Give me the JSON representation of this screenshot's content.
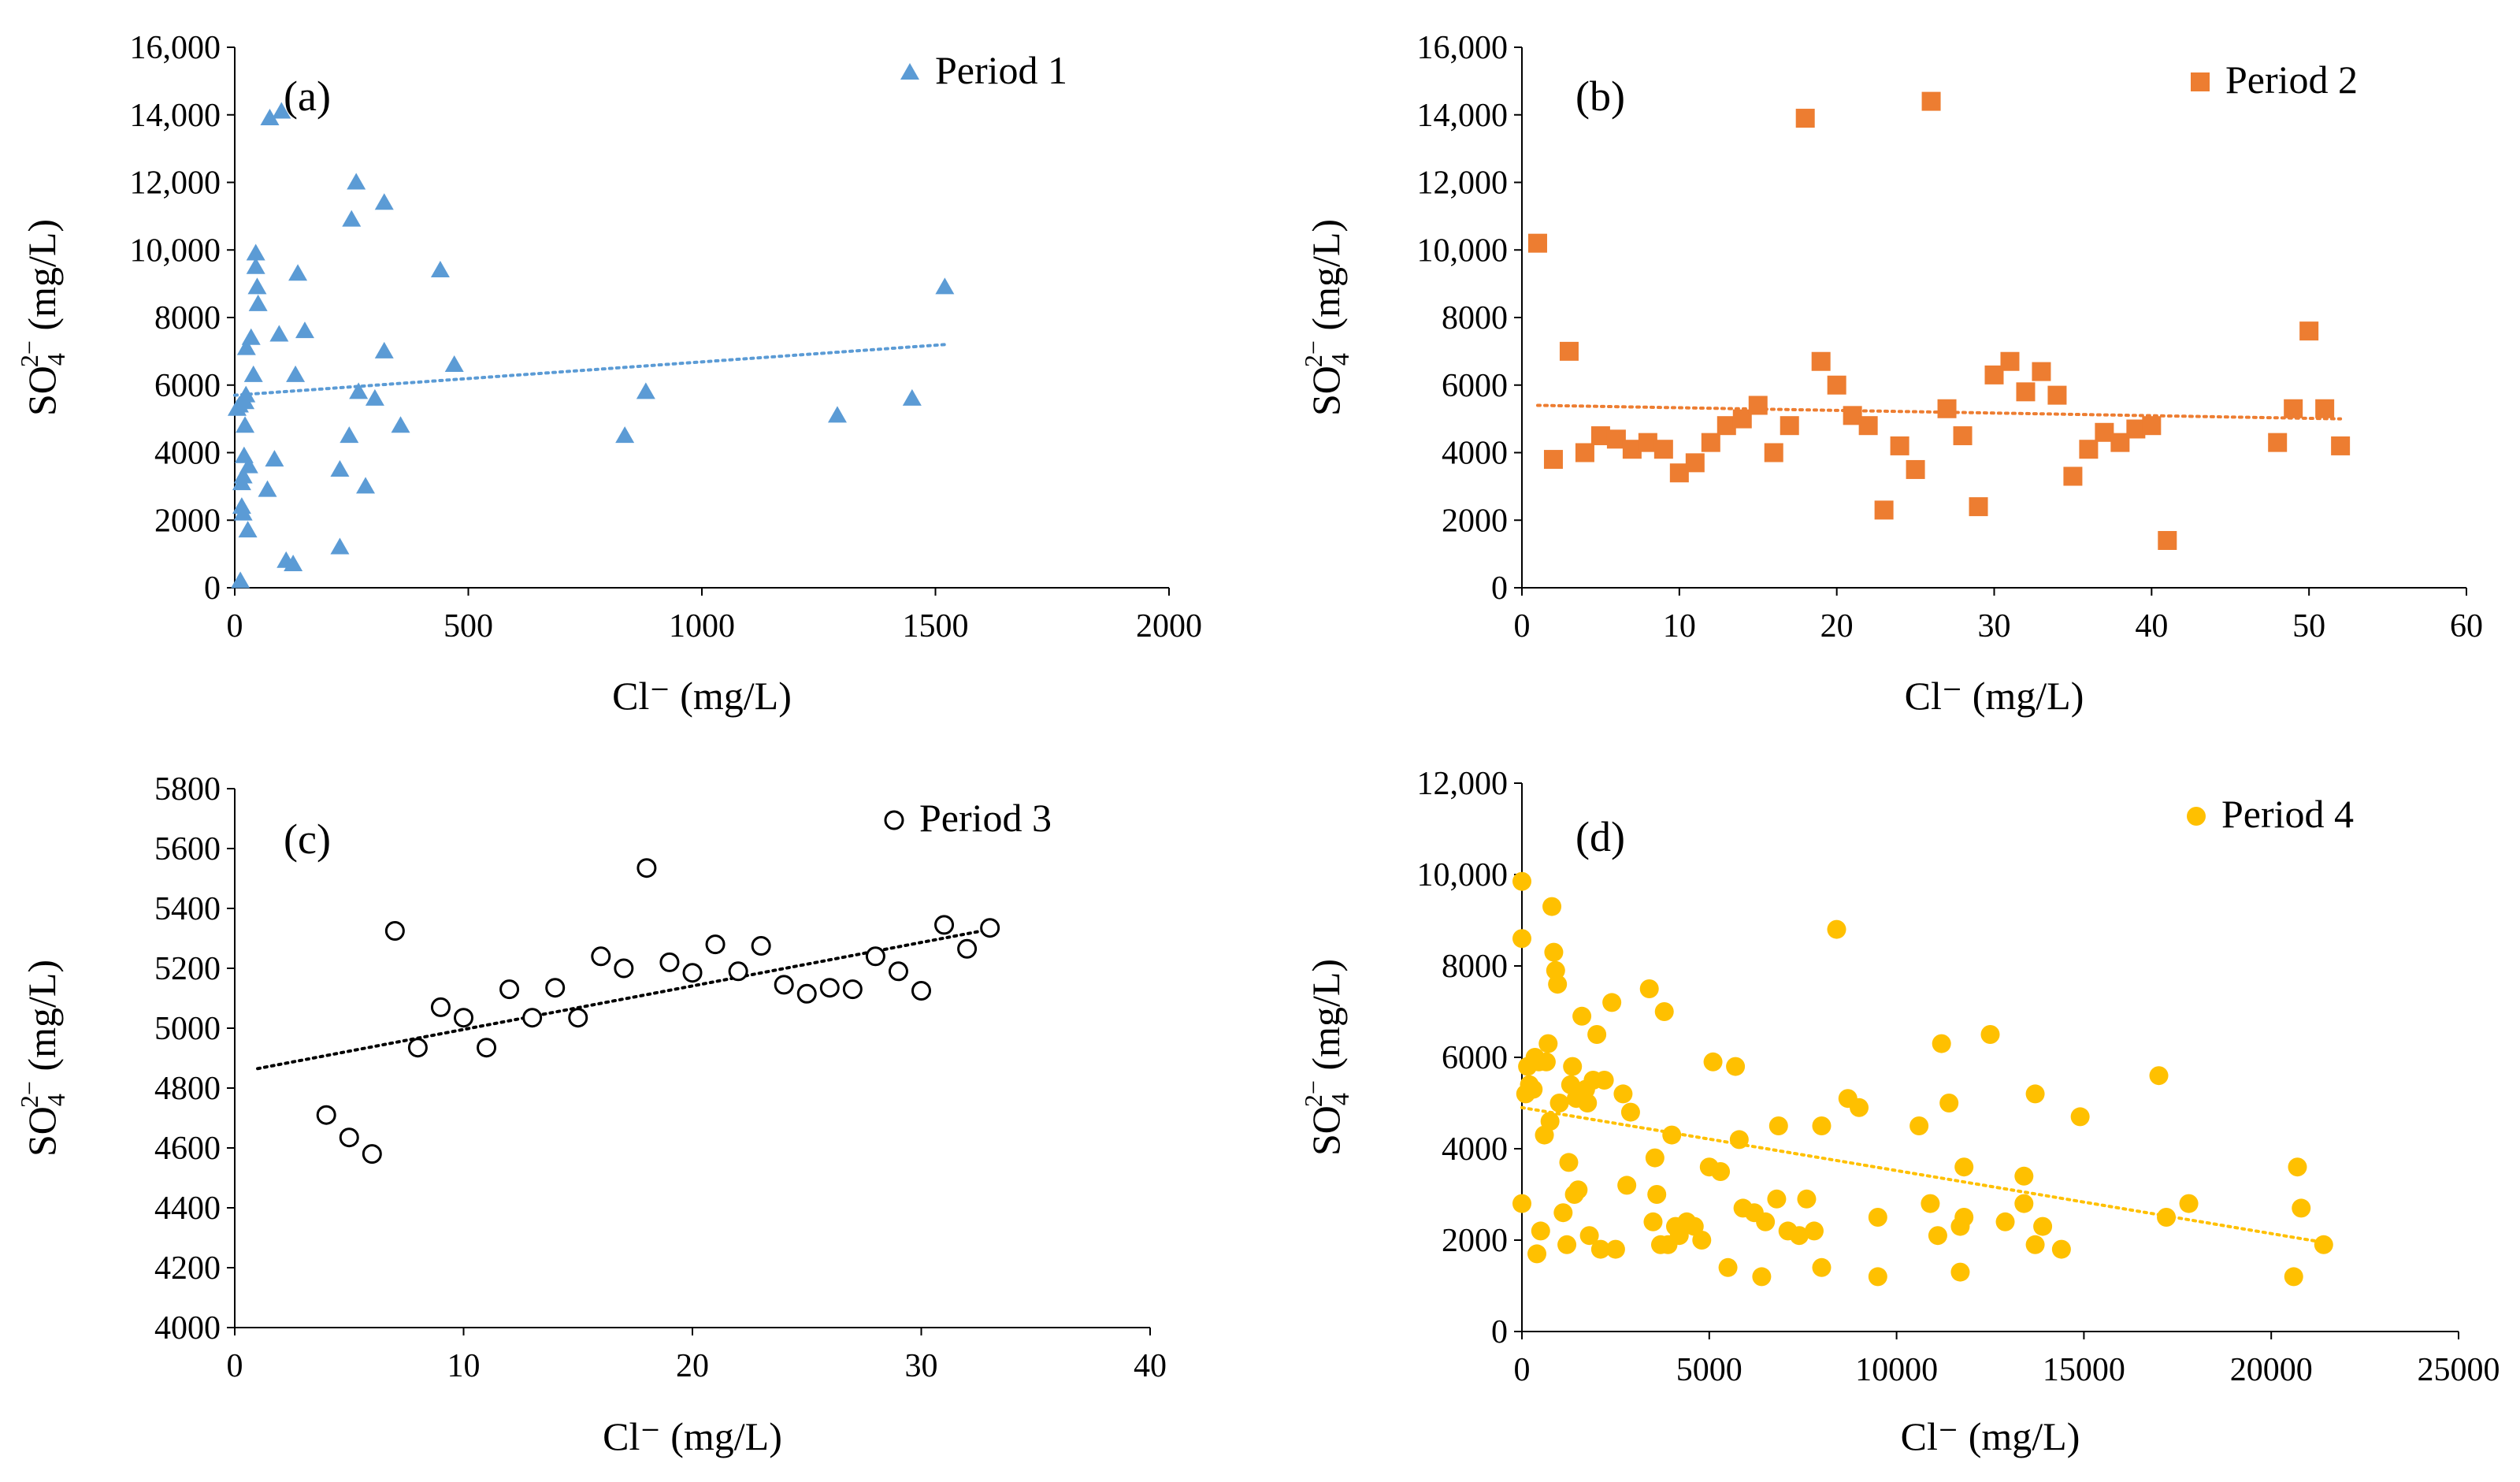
{
  "chart_data": [
    {
      "type": "scatter",
      "panel": "(a)",
      "series": [
        {
          "name": "Period 1",
          "marker": "triangle",
          "color": "#5B9BD5",
          "points": [
            [
              5,
              5300
            ],
            [
              10,
              5400
            ],
            [
              12,
              200
            ],
            [
              15,
              2400
            ],
            [
              15,
              3100
            ],
            [
              18,
              2200
            ],
            [
              18,
              3300
            ],
            [
              20,
              3900
            ],
            [
              22,
              4800
            ],
            [
              22,
              5500
            ],
            [
              24,
              5700
            ],
            [
              25,
              7100
            ],
            [
              28,
              1700
            ],
            [
              30,
              3600
            ],
            [
              35,
              7400
            ],
            [
              40,
              6300
            ],
            [
              45,
              9900
            ],
            [
              45,
              9500
            ],
            [
              48,
              8900
            ],
            [
              50,
              8400
            ],
            [
              70,
              2900
            ],
            [
              75,
              13900
            ],
            [
              85,
              3800
            ],
            [
              95,
              7500
            ],
            [
              100,
              14100
            ],
            [
              110,
              800
            ],
            [
              125,
              700
            ],
            [
              130,
              6300
            ],
            [
              135,
              9300
            ],
            [
              150,
              7600
            ],
            [
              225,
              1200
            ],
            [
              225,
              3500
            ],
            [
              245,
              4500
            ],
            [
              250,
              10900
            ],
            [
              260,
              12000
            ],
            [
              265,
              5800
            ],
            [
              280,
              3000
            ],
            [
              300,
              5600
            ],
            [
              320,
              11400
            ],
            [
              320,
              7000
            ],
            [
              355,
              4800
            ],
            [
              440,
              9400
            ],
            [
              470,
              6600
            ],
            [
              835,
              4500
            ],
            [
              880,
              5800
            ],
            [
              1290,
              5100
            ],
            [
              1450,
              5600
            ],
            [
              1520,
              8900
            ]
          ]
        }
      ],
      "trendline": {
        "x": [
          0,
          1520
        ],
        "y": [
          5700,
          7200
        ]
      },
      "xlabel": "Cl⁻ (mg/L)",
      "ylabel": "SO42− (mg/L)",
      "xlim": [
        0,
        2000
      ],
      "ylim": [
        0,
        16000
      ],
      "xticks": [
        "0",
        "500",
        "1000",
        "1500",
        "2000"
      ],
      "yticks": [
        "0",
        "2000",
        "4000",
        "6000",
        "8000",
        "10,000",
        "12,000",
        "14,000",
        "16,000"
      ],
      "grid": false,
      "legend": "top-right"
    },
    {
      "type": "scatter",
      "panel": "(b)",
      "series": [
        {
          "name": "Period 2",
          "marker": "square",
          "color": "#ED7D31",
          "points": [
            [
              1,
              10200
            ],
            [
              2,
              3800
            ],
            [
              3,
              7000
            ],
            [
              4,
              4000
            ],
            [
              5,
              4500
            ],
            [
              6,
              4400
            ],
            [
              7,
              4100
            ],
            [
              8,
              4300
            ],
            [
              9,
              4100
            ],
            [
              10,
              3400
            ],
            [
              11,
              3700
            ],
            [
              12,
              4300
            ],
            [
              13,
              4800
            ],
            [
              14,
              5000
            ],
            [
              15,
              5400
            ],
            [
              16,
              4000
            ],
            [
              17,
              4800
            ],
            [
              18,
              13900
            ],
            [
              19,
              6700
            ],
            [
              20,
              6000
            ],
            [
              21,
              5100
            ],
            [
              22,
              4800
            ],
            [
              23,
              2300
            ],
            [
              24,
              4200
            ],
            [
              25,
              3500
            ],
            [
              26,
              14400
            ],
            [
              27,
              5300
            ],
            [
              28,
              4500
            ],
            [
              29,
              2400
            ],
            [
              30,
              6300
            ],
            [
              31,
              6700
            ],
            [
              32,
              5800
            ],
            [
              33,
              6400
            ],
            [
              34,
              5700
            ],
            [
              35,
              3300
            ],
            [
              36,
              4100
            ],
            [
              37,
              4600
            ],
            [
              38,
              4300
            ],
            [
              39,
              4700
            ],
            [
              40,
              4800
            ],
            [
              41,
              1400
            ],
            [
              48,
              4300
            ],
            [
              49,
              5300
            ],
            [
              50,
              7600
            ],
            [
              51,
              5300
            ],
            [
              52,
              4200
            ]
          ]
        }
      ],
      "trendline": {
        "x": [
          1,
          52
        ],
        "y": [
          5400,
          5000
        ]
      },
      "xlabel": "Cl⁻ (mg/L)",
      "ylabel": "SO42− (mg/L)",
      "xlim": [
        0,
        60
      ],
      "ylim": [
        0,
        16000
      ],
      "xticks": [
        "0",
        "10",
        "20",
        "30",
        "40",
        "50",
        "60"
      ],
      "yticks": [
        "0",
        "2000",
        "4000",
        "6000",
        "8000",
        "10,000",
        "12,000",
        "14,000",
        "16,000"
      ],
      "grid": false,
      "legend": "top-right"
    },
    {
      "type": "scatter",
      "panel": "(c)",
      "series": [
        {
          "name": "Period 3",
          "marker": "circle-open",
          "color": "#000000",
          "points": [
            [
              4,
              4710
            ],
            [
              5,
              4635
            ],
            [
              6,
              4580
            ],
            [
              7,
              5325
            ],
            [
              8,
              4935
            ],
            [
              9,
              5070
            ],
            [
              10,
              5035
            ],
            [
              11,
              4935
            ],
            [
              12,
              5130
            ],
            [
              13,
              5035
            ],
            [
              14,
              5135
            ],
            [
              15,
              5035
            ],
            [
              16,
              5240
            ],
            [
              17,
              5200
            ],
            [
              18,
              5535
            ],
            [
              19,
              5220
            ],
            [
              20,
              5185
            ],
            [
              21,
              5280
            ],
            [
              22,
              5190
            ],
            [
              23,
              5275
            ],
            [
              24,
              5145
            ],
            [
              25,
              5115
            ],
            [
              26,
              5135
            ],
            [
              27,
              5130
            ],
            [
              28,
              5240
            ],
            [
              29,
              5190
            ],
            [
              30,
              5125
            ],
            [
              31,
              5345
            ],
            [
              32,
              5265
            ],
            [
              33,
              5335
            ]
          ]
        }
      ],
      "trendline": {
        "x": [
          1,
          33
        ],
        "y": [
          4865,
          5330
        ]
      },
      "xlabel": "Cl⁻ (mg/L)",
      "ylabel": "SO42− (mg/L)",
      "xlim": [
        0,
        40
      ],
      "ylim": [
        4000,
        5800
      ],
      "xticks": [
        "0",
        "10",
        "20",
        "30",
        "40"
      ],
      "yticks": [
        "4000",
        "4200",
        "4400",
        "4600",
        "4800",
        "5000",
        "5200",
        "5400",
        "5600",
        "5800"
      ],
      "grid": false,
      "legend": "top-right"
    },
    {
      "type": "scatter",
      "panel": "(d)",
      "series": [
        {
          "name": "Period 4",
          "marker": "circle",
          "color": "#FFC000",
          "points": [
            [
              0,
              9850
            ],
            [
              0,
              8600
            ],
            [
              0,
              2800
            ],
            [
              100,
              5200
            ],
            [
              150,
              5800
            ],
            [
              200,
              5400
            ],
            [
              300,
              5300
            ],
            [
              350,
              6000
            ],
            [
              400,
              1700
            ],
            [
              450,
              5900
            ],
            [
              500,
              2200
            ],
            [
              600,
              4300
            ],
            [
              650,
              5900
            ],
            [
              700,
              6300
            ],
            [
              750,
              4600
            ],
            [
              800,
              9300
            ],
            [
              850,
              8300
            ],
            [
              900,
              7900
            ],
            [
              950,
              7600
            ],
            [
              1000,
              5000
            ],
            [
              1100,
              2600
            ],
            [
              1200,
              1900
            ],
            [
              1250,
              3700
            ],
            [
              1300,
              5400
            ],
            [
              1350,
              5800
            ],
            [
              1400,
              3000
            ],
            [
              1450,
              5100
            ],
            [
              1500,
              3100
            ],
            [
              1600,
              6900
            ],
            [
              1700,
              5300
            ],
            [
              1750,
              5000
            ],
            [
              1800,
              2100
            ],
            [
              1900,
              5500
            ],
            [
              2000,
              6500
            ],
            [
              2100,
              1800
            ],
            [
              2200,
              5500
            ],
            [
              2400,
              7200
            ],
            [
              2500,
              1800
            ],
            [
              2700,
              5200
            ],
            [
              2800,
              3200
            ],
            [
              2900,
              4800
            ],
            [
              3400,
              7500
            ],
            [
              3500,
              2400
            ],
            [
              3550,
              3800
            ],
            [
              3600,
              3000
            ],
            [
              3700,
              1900
            ],
            [
              3800,
              7000
            ],
            [
              3900,
              1900
            ],
            [
              4000,
              4300
            ],
            [
              4100,
              2300
            ],
            [
              4200,
              2100
            ],
            [
              4400,
              2400
            ],
            [
              4600,
              2300
            ],
            [
              4800,
              2000
            ],
            [
              5000,
              3600
            ],
            [
              5100,
              5900
            ],
            [
              5300,
              3500
            ],
            [
              5500,
              1400
            ],
            [
              5700,
              5800
            ],
            [
              5800,
              4200
            ],
            [
              5900,
              2700
            ],
            [
              6200,
              2600
            ],
            [
              6400,
              1200
            ],
            [
              6500,
              2400
            ],
            [
              6800,
              2900
            ],
            [
              6850,
              4500
            ],
            [
              7100,
              2200
            ],
            [
              7400,
              2100
            ],
            [
              7600,
              2900
            ],
            [
              7800,
              2200
            ],
            [
              8000,
              1400
            ],
            [
              8000,
              4500
            ],
            [
              8400,
              8800
            ],
            [
              8700,
              5100
            ],
            [
              9000,
              4900
            ],
            [
              9500,
              2500
            ],
            [
              9500,
              1200
            ],
            [
              10600,
              4500
            ],
            [
              10900,
              2800
            ],
            [
              11100,
              2100
            ],
            [
              11200,
              6300
            ],
            [
              11400,
              5000
            ],
            [
              11700,
              1300
            ],
            [
              11700,
              2300
            ],
            [
              11800,
              3600
            ],
            [
              11800,
              2500
            ],
            [
              12500,
              6500
            ],
            [
              12900,
              2400
            ],
            [
              13400,
              3400
            ],
            [
              13400,
              2800
            ],
            [
              13700,
              5200
            ],
            [
              13700,
              1900
            ],
            [
              13900,
              2300
            ],
            [
              14400,
              1800
            ],
            [
              14900,
              4700
            ],
            [
              17000,
              5600
            ],
            [
              17200,
              2500
            ],
            [
              17800,
              2800
            ],
            [
              20600,
              1200
            ],
            [
              20700,
              3600
            ],
            [
              20800,
              2700
            ],
            [
              21400,
              1900
            ]
          ]
        }
      ],
      "trendline": {
        "x": [
          0,
          21400
        ],
        "y": [
          4900,
          1950
        ]
      },
      "xlabel": "Cl⁻ (mg/L)",
      "ylabel": "SO42− (mg/L)",
      "xlim": [
        0,
        25000
      ],
      "ylim": [
        0,
        12000
      ],
      "xticks": [
        "0",
        "5000",
        "10000",
        "15000",
        "20000",
        "25000"
      ],
      "yticks": [
        "0",
        "2000",
        "4000",
        "6000",
        "8000",
        "10,000",
        "12,000"
      ],
      "grid": false,
      "legend": "top-right"
    }
  ]
}
